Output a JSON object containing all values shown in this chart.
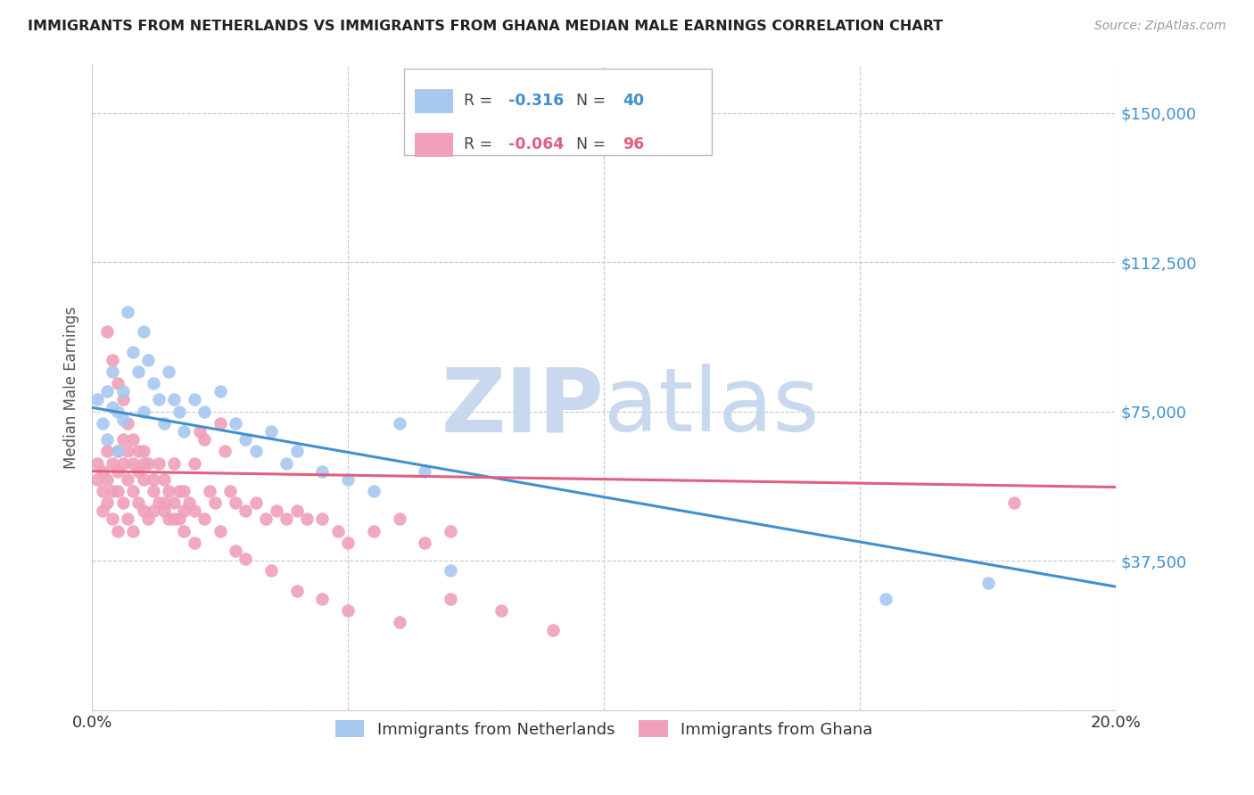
{
  "title": "IMMIGRANTS FROM NETHERLANDS VS IMMIGRANTS FROM GHANA MEDIAN MALE EARNINGS CORRELATION CHART",
  "source": "Source: ZipAtlas.com",
  "ylabel_label": "Median Male Earnings",
  "xlim": [
    0.0,
    0.2
  ],
  "ylim": [
    0,
    162000
  ],
  "yticks": [
    0,
    37500,
    75000,
    112500,
    150000
  ],
  "ytick_labels": [
    "",
    "$37,500",
    "$75,000",
    "$112,500",
    "$150,000"
  ],
  "xticks": [
    0.0,
    0.05,
    0.1,
    0.15,
    0.2
  ],
  "xtick_labels": [
    "0.0%",
    "",
    "",
    "",
    "20.0%"
  ],
  "background_color": "#ffffff",
  "grid_color": "#c8c8c8",
  "watermark_zip": "ZIP",
  "watermark_atlas": "atlas",
  "watermark_color": "#c8d8ee",
  "nl_color": "#a8c8f0",
  "gh_color": "#f0a0b8",
  "nl_line_color": "#4090d0",
  "gh_line_color": "#e06080",
  "nl_R": "-0.316",
  "nl_N": "40",
  "gh_R": "-0.064",
  "gh_N": "96",
  "legend_label_nl": "Immigrants from Netherlands",
  "legend_label_gh": "Immigrants from Ghana",
  "nl_x": [
    0.001,
    0.002,
    0.003,
    0.003,
    0.004,
    0.004,
    0.005,
    0.005,
    0.006,
    0.006,
    0.007,
    0.008,
    0.009,
    0.01,
    0.01,
    0.011,
    0.012,
    0.013,
    0.014,
    0.015,
    0.016,
    0.017,
    0.018,
    0.02,
    0.022,
    0.025,
    0.028,
    0.03,
    0.032,
    0.035,
    0.038,
    0.04,
    0.045,
    0.05,
    0.055,
    0.06,
    0.065,
    0.07,
    0.155,
    0.175
  ],
  "nl_y": [
    78000,
    72000,
    80000,
    68000,
    76000,
    85000,
    75000,
    65000,
    80000,
    73000,
    100000,
    90000,
    85000,
    75000,
    95000,
    88000,
    82000,
    78000,
    72000,
    85000,
    78000,
    75000,
    70000,
    78000,
    75000,
    80000,
    72000,
    68000,
    65000,
    70000,
    62000,
    65000,
    60000,
    58000,
    55000,
    72000,
    60000,
    35000,
    28000,
    32000
  ],
  "gh_x": [
    0.001,
    0.001,
    0.002,
    0.002,
    0.002,
    0.003,
    0.003,
    0.003,
    0.004,
    0.004,
    0.004,
    0.005,
    0.005,
    0.005,
    0.005,
    0.006,
    0.006,
    0.006,
    0.007,
    0.007,
    0.007,
    0.008,
    0.008,
    0.008,
    0.009,
    0.009,
    0.01,
    0.01,
    0.01,
    0.011,
    0.011,
    0.012,
    0.012,
    0.013,
    0.013,
    0.014,
    0.014,
    0.015,
    0.015,
    0.016,
    0.016,
    0.017,
    0.017,
    0.018,
    0.018,
    0.019,
    0.02,
    0.02,
    0.021,
    0.022,
    0.023,
    0.024,
    0.025,
    0.026,
    0.027,
    0.028,
    0.03,
    0.032,
    0.034,
    0.036,
    0.038,
    0.04,
    0.042,
    0.045,
    0.048,
    0.05,
    0.055,
    0.06,
    0.065,
    0.07,
    0.003,
    0.004,
    0.005,
    0.006,
    0.007,
    0.008,
    0.009,
    0.01,
    0.012,
    0.014,
    0.016,
    0.018,
    0.02,
    0.022,
    0.025,
    0.028,
    0.03,
    0.035,
    0.04,
    0.045,
    0.05,
    0.06,
    0.07,
    0.08,
    0.09,
    0.18
  ],
  "gh_y": [
    62000,
    58000,
    60000,
    55000,
    50000,
    65000,
    58000,
    52000,
    62000,
    55000,
    48000,
    65000,
    60000,
    55000,
    45000,
    68000,
    62000,
    52000,
    65000,
    58000,
    48000,
    62000,
    55000,
    45000,
    60000,
    52000,
    65000,
    58000,
    50000,
    62000,
    48000,
    58000,
    50000,
    62000,
    52000,
    58000,
    50000,
    55000,
    48000,
    62000,
    52000,
    55000,
    48000,
    55000,
    50000,
    52000,
    62000,
    50000,
    70000,
    68000,
    55000,
    52000,
    72000,
    65000,
    55000,
    52000,
    50000,
    52000,
    48000,
    50000,
    48000,
    50000,
    48000,
    48000,
    45000,
    42000,
    45000,
    48000,
    42000,
    45000,
    95000,
    88000,
    82000,
    78000,
    72000,
    68000,
    65000,
    62000,
    55000,
    52000,
    48000,
    45000,
    42000,
    48000,
    45000,
    40000,
    38000,
    35000,
    30000,
    28000,
    25000,
    22000,
    28000,
    25000,
    20000,
    52000
  ]
}
